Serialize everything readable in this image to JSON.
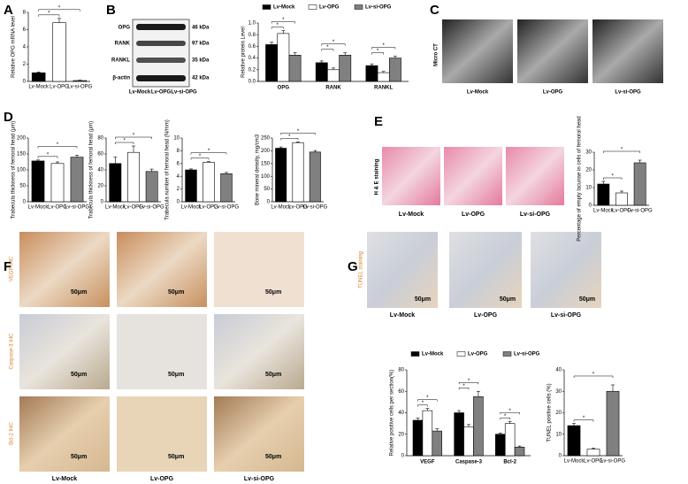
{
  "panel_labels": [
    "A",
    "B",
    "C",
    "D",
    "E",
    "F",
    "G"
  ],
  "blot": {
    "bands": [
      "OPG",
      "RANK",
      "RANKL",
      "β-actin"
    ],
    "sizes": [
      "46 kDa",
      "97 kDa",
      "35 kDa",
      "42 kDa"
    ],
    "lanes": [
      "Lv-Mock",
      "Lv-OPG",
      "Lv-si-OPG"
    ]
  },
  "micro_ct": {
    "label": "Micro CT",
    "columns": [
      "Lv-Mock",
      "Lv-OPG",
      "Lv-si-OPG"
    ]
  },
  "he": {
    "label": "H & E staining",
    "columns": [
      "Lv-Mock",
      "Lv-OPG",
      "Lv-si-OPG"
    ]
  },
  "ihc": {
    "rows": [
      "VEGF IHC",
      "Caspase-3 IHC",
      "Bcl-2 IHC"
    ],
    "columns": [
      "Lv-Mock",
      "Lv-OPG",
      "Lv-si-OPG"
    ],
    "scale": "50μm"
  },
  "tunel": {
    "label": "TUNEL staining",
    "columns": [
      "Lv-Mock",
      "Lv-OPG",
      "Lv-si-OPG"
    ],
    "scale": "50μm"
  },
  "chart_data": [
    {
      "type": "bar",
      "ylabel": "Relative OPG mRNA level",
      "categories": [
        "Lv-Mock",
        "Lv-OPG",
        "Lv-si-OPG"
      ],
      "values": [
        1,
        6.8,
        0.1
      ],
      "errors": [
        0.1,
        0.5,
        0.05
      ],
      "colors": [
        "#000000",
        "#ffffff",
        "#808080"
      ],
      "ylim": [
        0,
        8
      ],
      "yticks": [
        0,
        2,
        4,
        6,
        8
      ],
      "comparisons": [
        {
          "label": "*",
          "between": [
            "Lv-Mock",
            "Lv-OPG"
          ]
        },
        {
          "label": "*",
          "between": [
            "Lv-Mock",
            "Lv-si-OPG"
          ]
        }
      ]
    },
    {
      "type": "grouped-bar",
      "ylabel": "Relative protein Level",
      "categories": [
        "OPG",
        "RANK",
        "RANKL"
      ],
      "series": [
        {
          "name": "Lv-Mock",
          "color": "#000000",
          "values": [
            0.63,
            0.32,
            0.27
          ],
          "errors": [
            0.04,
            0.03,
            0.03
          ]
        },
        {
          "name": "Lv-OPG",
          "color": "#ffffff",
          "values": [
            0.82,
            0.2,
            0.15
          ],
          "errors": [
            0.05,
            0.03,
            0.02
          ]
        },
        {
          "name": "Lv-si-OPG",
          "color": "#808080",
          "values": [
            0.45,
            0.45,
            0.4
          ],
          "errors": [
            0.04,
            0.04,
            0.03
          ]
        }
      ],
      "ylim": [
        0,
        1
      ],
      "yticks": [
        {
          "value": 0,
          "label": "0.0"
        },
        0.2,
        0.4,
        0.6,
        0.8,
        {
          "value": 1,
          "label": "1.0"
        }
      ],
      "comparisons": [
        {
          "label": "*",
          "group": "OPG",
          "between": [
            "Lv-Mock",
            "Lv-OPG"
          ]
        },
        {
          "label": "*",
          "group": "OPG",
          "between": [
            "Lv-Mock",
            "Lv-si-OPG"
          ]
        },
        {
          "label": "*",
          "group": "RANK",
          "between": [
            "Lv-Mock",
            "Lv-OPG"
          ]
        },
        {
          "label": "*",
          "group": "RANK",
          "between": [
            "Lv-Mock",
            "Lv-si-OPG"
          ]
        },
        {
          "label": "*",
          "group": "RANKL",
          "between": [
            "Lv-Mock",
            "Lv-OPG"
          ]
        },
        {
          "label": "*",
          "group": "RANKL",
          "between": [
            "Lv-Mock",
            "Lv-si-OPG"
          ]
        }
      ]
    },
    {
      "type": "bar",
      "ylabel": "Trabecula thickness of femoral head (μm)",
      "categories": [
        "Lv-Mock",
        "Lv-OPG",
        "Lv-si-OPG"
      ],
      "values": [
        128,
        120,
        140
      ],
      "errors": [
        3,
        5,
        6
      ],
      "colors": [
        "#000000",
        "#ffffff",
        "#808080"
      ],
      "ylim": [
        0,
        200
      ],
      "yticks": [
        0,
        50,
        100,
        150,
        200
      ],
      "comparisons": [
        {
          "label": "*",
          "between": [
            "Lv-Mock",
            "Lv-OPG"
          ]
        },
        {
          "label": "*",
          "between": [
            "Lv-Mock",
            "Lv-si-OPG"
          ]
        }
      ]
    },
    {
      "type": "bar",
      "ylabel": "Trabecula thickness of femoral head (μm)",
      "categories": [
        "Lv-Mock",
        "Lv-OPG",
        "Lv-si-OPG"
      ],
      "values": [
        48,
        62,
        38
      ],
      "errors": [
        8,
        8,
        3
      ],
      "colors": [
        "#000000",
        "#ffffff",
        "#808080"
      ],
      "ylim": [
        0,
        80
      ],
      "yticks": [
        0,
        20,
        40,
        60,
        80
      ],
      "comparisons": [
        {
          "label": "*",
          "between": [
            "Lv-Mock",
            "Lv-OPG"
          ]
        },
        {
          "label": "*",
          "between": [
            "Lv-Mock",
            "Lv-si-OPG"
          ]
        }
      ]
    },
    {
      "type": "bar",
      "ylabel": "Trabecula number of femoral head (N/mm)",
      "categories": [
        "Lv-Mock",
        "Lv-OPG",
        "Lv-si-OPG"
      ],
      "values": [
        5.0,
        6.2,
        4.4
      ],
      "errors": [
        0.15,
        0.1,
        0.2
      ],
      "colors": [
        "#000000",
        "#ffffff",
        "#808080"
      ],
      "ylim": [
        0,
        10
      ],
      "yticks": [
        0,
        2,
        4,
        6,
        8,
        10
      ],
      "comparisons": [
        {
          "label": "*",
          "between": [
            "Lv-Mock",
            "Lv-OPG"
          ]
        },
        {
          "label": "*",
          "between": [
            "Lv-Mock",
            "Lv-si-OPG"
          ]
        }
      ]
    },
    {
      "type": "bar",
      "ylabel": "Bone mineral density, mg/cm3",
      "categories": [
        "Lv-Mock",
        "Lv-OPG",
        "Lv-si-OPG"
      ],
      "values": [
        210,
        232,
        195
      ],
      "errors": [
        5,
        3,
        6
      ],
      "colors": [
        "#000000",
        "#ffffff",
        "#808080"
      ],
      "ylim": [
        0,
        250
      ],
      "yticks": [
        0,
        50,
        100,
        150,
        200,
        250
      ],
      "comparisons": [
        {
          "label": "*",
          "between": [
            "Lv-Mock",
            "Lv-OPG"
          ]
        },
        {
          "label": "*",
          "between": [
            "Lv-Mock",
            "Lv-si-OPG"
          ]
        }
      ]
    },
    {
      "type": "bar",
      "ylabel": "Percentage of empty lacunae in cells of femoral head",
      "categories": [
        "Lv-Mock",
        "Lv-OPG",
        "Lv-si-OPG"
      ],
      "values": [
        12,
        7,
        24
      ],
      "errors": [
        1.5,
        1,
        1.5
      ],
      "colors": [
        "#000000",
        "#ffffff",
        "#808080"
      ],
      "ylim": [
        0,
        30
      ],
      "yticks": [
        0,
        10,
        20,
        30
      ],
      "comparisons": [
        {
          "label": "*",
          "between": [
            "Lv-Mock",
            "Lv-OPG"
          ]
        },
        {
          "label": "*",
          "between": [
            "Lv-Mock",
            "Lv-si-OPG"
          ]
        }
      ]
    },
    {
      "type": "grouped-bar",
      "ylabel": "Relative positive cells per section(%)",
      "categories": [
        "VEGF",
        "Caspase-3",
        "Bcl-2"
      ],
      "series": [
        {
          "name": "Lv-Mock",
          "color": "#000000",
          "values": [
            33,
            40,
            20
          ],
          "errors": [
            2,
            2,
            1
          ]
        },
        {
          "name": "Lv-OPG",
          "color": "#ffffff",
          "values": [
            42,
            27,
            30
          ],
          "errors": [
            2,
            2,
            2
          ]
        },
        {
          "name": "Lv-si-OPG",
          "color": "#808080",
          "values": [
            23,
            55,
            8
          ],
          "errors": [
            2,
            5,
            1
          ]
        }
      ],
      "ylim": [
        0,
        80
      ],
      "yticks": [
        0,
        20,
        40,
        60,
        80
      ],
      "comparisons": [
        {
          "label": "*",
          "group": "VEGF",
          "between": [
            "Lv-Mock",
            "Lv-OPG"
          ]
        },
        {
          "label": "*",
          "group": "VEGF",
          "between": [
            "Lv-Mock",
            "Lv-si-OPG"
          ]
        },
        {
          "label": "*",
          "group": "Caspase-3",
          "between": [
            "Lv-Mock",
            "Lv-OPG"
          ]
        },
        {
          "label": "*",
          "group": "Caspase-3",
          "between": [
            "Lv-Mock",
            "Lv-si-OPG"
          ]
        },
        {
          "label": "*",
          "group": "Bcl-2",
          "between": [
            "Lv-Mock",
            "Lv-OPG"
          ]
        },
        {
          "label": "*",
          "group": "Bcl-2",
          "between": [
            "Lv-Mock",
            "Lv-si-OPG"
          ]
        }
      ]
    },
    {
      "type": "bar",
      "ylabel": "TUNEL positive cells (%)",
      "categories": [
        "Lv-Mock",
        "Lv-OPG",
        "Lv-si-OPG"
      ],
      "values": [
        14,
        3,
        30
      ],
      "errors": [
        1,
        0.5,
        3
      ],
      "colors": [
        "#000000",
        "#ffffff",
        "#808080"
      ],
      "ylim": [
        0,
        40
      ],
      "yticks": [
        0,
        10,
        20,
        30,
        40
      ],
      "comparisons": [
        {
          "label": "*",
          "between": [
            "Lv-Mock",
            "Lv-OPG"
          ]
        },
        {
          "label": "*",
          "between": [
            "Lv-Mock",
            "Lv-si-OPG"
          ]
        }
      ]
    }
  ]
}
